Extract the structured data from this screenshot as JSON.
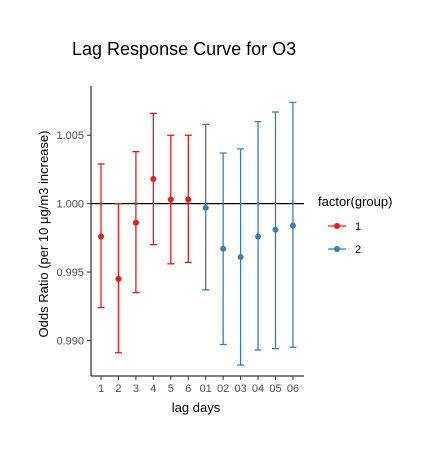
{
  "chart_data": {
    "type": "scatter",
    "title": "Lag Response Curve for O3",
    "xlabel": "lag days",
    "ylabel": "Odds Ratio (per 10 μg/m3 increase)",
    "categories": [
      "1",
      "2",
      "3",
      "4",
      "5",
      "6",
      "01",
      "02",
      "03",
      "04",
      "05",
      "06"
    ],
    "yticks": [
      0.99,
      0.995,
      1.0,
      1.005
    ],
    "ytick_labels": [
      "0.990",
      "0.995",
      "1.000",
      "1.005"
    ],
    "ylim": [
      0.9874,
      1.0086
    ],
    "reference_line": 1.0,
    "grid": false,
    "legend": {
      "title": "factor(group)",
      "placement": "right",
      "entries": [
        {
          "label": "1",
          "color": "#E41A1C"
        },
        {
          "label": "2",
          "color": "#377EB8"
        }
      ]
    },
    "series": [
      {
        "name": "1",
        "color": "#E41A1C",
        "points": [
          {
            "x": "1",
            "y": 0.9976,
            "lower": 0.9924,
            "upper": 1.0029
          },
          {
            "x": "2",
            "y": 0.9945,
            "lower": 0.9891,
            "upper": 1.0
          },
          {
            "x": "3",
            "y": 0.9986,
            "lower": 0.9935,
            "upper": 1.0038
          },
          {
            "x": "4",
            "y": 1.0018,
            "lower": 0.997,
            "upper": 1.0066
          },
          {
            "x": "5",
            "y": 1.0003,
            "lower": 0.9956,
            "upper": 1.005
          },
          {
            "x": "6",
            "y": 1.0003,
            "lower": 0.9957,
            "upper": 1.005
          }
        ]
      },
      {
        "name": "2",
        "color": "#377EB8",
        "points": [
          {
            "x": "01",
            "y": 0.9997,
            "lower": 0.9937,
            "upper": 1.0058
          },
          {
            "x": "02",
            "y": 0.9967,
            "lower": 0.9897,
            "upper": 1.0037
          },
          {
            "x": "03",
            "y": 0.9961,
            "lower": 0.9882,
            "upper": 1.004
          },
          {
            "x": "04",
            "y": 0.9976,
            "lower": 0.9893,
            "upper": 1.006
          },
          {
            "x": "05",
            "y": 0.9981,
            "lower": 0.9894,
            "upper": 1.0067
          },
          {
            "x": "06",
            "y": 0.9984,
            "lower": 0.9895,
            "upper": 1.0074
          }
        ]
      }
    ]
  }
}
